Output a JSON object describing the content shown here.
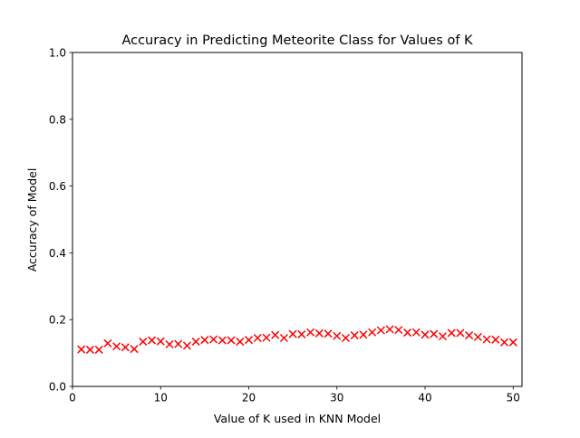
{
  "chart_data": {
    "type": "scatter",
    "title": "Accuracy in Predicting Meteorite Class for Values of K",
    "xlabel": "Value of K used in KNN Model",
    "ylabel": "Accuracy of Model",
    "xlim": [
      0,
      51
    ],
    "ylim": [
      0.0,
      1.0
    ],
    "xticks": [
      0,
      10,
      20,
      30,
      40,
      50
    ],
    "yticks": [
      0.0,
      0.2,
      0.4,
      0.6,
      0.8,
      1.0
    ],
    "xtick_labels": [
      "0",
      "10",
      "20",
      "30",
      "40",
      "50"
    ],
    "ytick_labels": [
      "0.0",
      "0.2",
      "0.4",
      "0.6",
      "0.8",
      "1.0"
    ],
    "grid": false,
    "marker": "x",
    "marker_color": "#ff0000",
    "series": [
      {
        "x": [
          1,
          2,
          3,
          4,
          5,
          6,
          7,
          8,
          9,
          10,
          11,
          12,
          13,
          14,
          15,
          16,
          17,
          18,
          19,
          20,
          21,
          22,
          23,
          24,
          25,
          26,
          27,
          28,
          29,
          30,
          31,
          32,
          33,
          34,
          35,
          36,
          37,
          38,
          39,
          40,
          41,
          42,
          43,
          44,
          45,
          46,
          47,
          48,
          49,
          50
        ],
        "y": [
          0.111,
          0.11,
          0.11,
          0.129,
          0.12,
          0.117,
          0.112,
          0.134,
          0.138,
          0.135,
          0.126,
          0.127,
          0.122,
          0.134,
          0.139,
          0.141,
          0.138,
          0.138,
          0.134,
          0.139,
          0.145,
          0.146,
          0.154,
          0.145,
          0.157,
          0.156,
          0.162,
          0.159,
          0.158,
          0.151,
          0.145,
          0.153,
          0.155,
          0.162,
          0.168,
          0.171,
          0.169,
          0.161,
          0.162,
          0.155,
          0.157,
          0.15,
          0.16,
          0.16,
          0.153,
          0.148,
          0.141,
          0.14,
          0.132,
          0.132
        ]
      }
    ]
  }
}
